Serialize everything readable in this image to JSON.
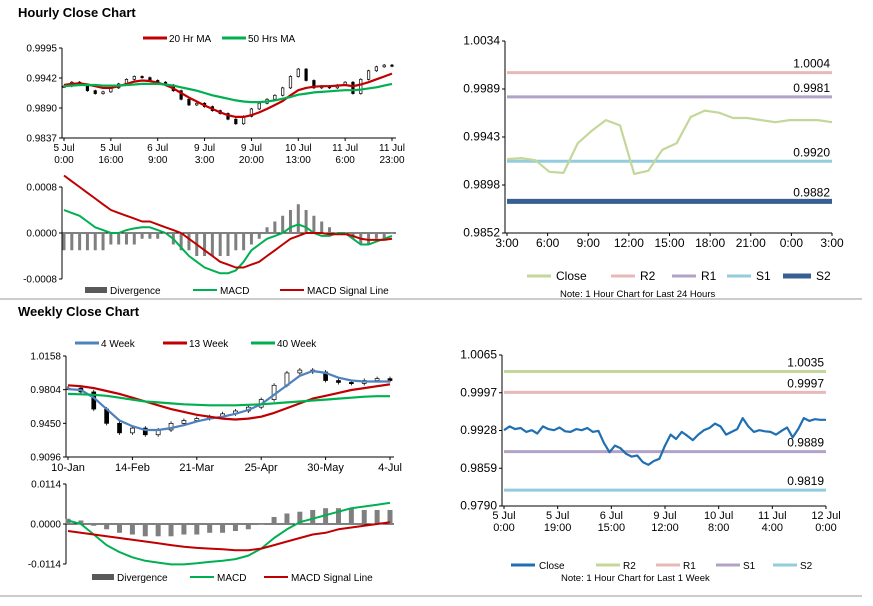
{
  "page": {
    "hourly_title": "Hourly Close Chart",
    "weekly_title": "Weekly Close Chart"
  },
  "legend_hourly_ma": [
    "20 Hr MA",
    "50 Hrs MA"
  ],
  "legend_hourly_macd": [
    "Divergence",
    "MACD",
    "MACD Signal Line"
  ],
  "legend_weekly_ma": [
    "4 Week",
    "13 Week",
    "40 Week"
  ],
  "legend_weekly_macd": [
    "Divergence",
    "MACD",
    "MACD Signal Line"
  ],
  "legend_pivot": [
    "Close",
    "R2",
    "R1",
    "S1",
    "S2"
  ],
  "notes": {
    "hourly": "Note: 1 Hour Chart for Last 24 Hours",
    "weekly": "Note: 1 Hour Chart for Last 1 Week"
  },
  "colors": {
    "ma20": "#c00000",
    "ma50": "#00b050",
    "wk4": "#4f81bd",
    "wk13": "#c00000",
    "wk40": "#00b050",
    "divergence": "#808080",
    "macd": "#00b050",
    "signal": "#c00000",
    "close_hourly": "#c4d79b",
    "close_weekly": "#1f6fb2",
    "r2_hourly": "#e6b9b8",
    "r1_hourly": "#b3a2c7",
    "s1_hourly": "#93cddd",
    "s2_hourly": "#376092",
    "r2_weekly": "#c4d79b",
    "r1_weekly": "#e6b9b8",
    "s1_weekly": "#b3a2c7",
    "s2_weekly": "#93cddd"
  },
  "chart_data": [
    {
      "id": "hourly_price",
      "type": "line",
      "title": "Hourly Close Chart",
      "x_tick_labels": [
        [
          "5 Jul",
          "0:00"
        ],
        [
          "5 Jul",
          "16:00"
        ],
        [
          "6 Jul",
          "9:00"
        ],
        [
          "9 Jul",
          "3:00"
        ],
        [
          "9 Jul",
          "20:00"
        ],
        [
          "10 Jul",
          "13:00"
        ],
        [
          "11 Jul",
          "6:00"
        ],
        [
          "11 Jul",
          "23:00"
        ]
      ],
      "y_tick_labels": [
        "0.9995",
        "0.9942",
        "0.9890",
        "0.9837"
      ],
      "ylim": [
        0.9837,
        0.9995
      ],
      "close": [
        0.9928,
        0.9935,
        0.993,
        0.992,
        0.9915,
        0.9918,
        0.9925,
        0.9932,
        0.994,
        0.9945,
        0.9943,
        0.9938,
        0.9935,
        0.993,
        0.992,
        0.9905,
        0.9895,
        0.9898,
        0.9892,
        0.9885,
        0.988,
        0.987,
        0.9862,
        0.9875,
        0.9888,
        0.9898,
        0.9905,
        0.9912,
        0.9925,
        0.9945,
        0.9958,
        0.9938,
        0.9925,
        0.9928,
        0.9925,
        0.993,
        0.9935,
        0.9915,
        0.994,
        0.9955,
        0.9962,
        0.9965,
        0.9963
      ],
      "series": [
        {
          "name": "20 Hr MA",
          "values": [
            0.993,
            0.9932,
            0.9933,
            0.9931,
            0.9928,
            0.9925,
            0.9925,
            0.9928,
            0.9932,
            0.9936,
            0.9938,
            0.9937,
            0.9934,
            0.993,
            0.9924,
            0.9916,
            0.9908,
            0.9901,
            0.9894,
            0.9888,
            0.9882,
            0.9877,
            0.9874,
            0.9874,
            0.9877,
            0.9882,
            0.9888,
            0.9895,
            0.9902,
            0.9912,
            0.9921,
            0.9925,
            0.9927,
            0.9928,
            0.9928,
            0.9929,
            0.993,
            0.9928,
            0.9931,
            0.9935,
            0.994,
            0.9945,
            0.995
          ]
        },
        {
          "name": "50 Hrs MA",
          "values": [
            0.9928,
            0.9929,
            0.993,
            0.993,
            0.993,
            0.9929,
            0.9929,
            0.9929,
            0.993,
            0.9931,
            0.9932,
            0.9932,
            0.9932,
            0.9931,
            0.9929,
            0.9926,
            0.9923,
            0.992,
            0.9916,
            0.9912,
            0.9909,
            0.9906,
            0.9903,
            0.9901,
            0.99,
            0.99,
            0.9901,
            0.9903,
            0.9906,
            0.9909,
            0.9913,
            0.9915,
            0.9917,
            0.9918,
            0.9919,
            0.992,
            0.9921,
            0.9921,
            0.9922,
            0.9924,
            0.9926,
            0.9929,
            0.9932
          ]
        }
      ]
    },
    {
      "id": "hourly_macd",
      "type": "bar+line",
      "y_tick_labels": [
        "0.0008",
        "0.0000",
        "-0.0008"
      ],
      "ylim": [
        -0.0008,
        0.0008
      ],
      "series": [
        {
          "name": "Divergence",
          "values": [
            -0.0003,
            -0.0003,
            -0.0003,
            -0.0003,
            -0.0003,
            -0.0003,
            -0.0002,
            -0.0002,
            -0.0002,
            -0.0002,
            -0.0001,
            -0.0001,
            -0.0001,
            0.0,
            -0.0002,
            -0.0003,
            -0.0003,
            -0.0004,
            -0.0004,
            -0.0004,
            -0.0004,
            -0.0004,
            -0.0003,
            -0.0003,
            -0.0002,
            -0.0001,
            0.0001,
            0.0002,
            0.0003,
            0.0004,
            0.0005,
            0.0004,
            0.0003,
            0.0002,
            0.0001,
            0.0,
            0.0,
            -0.0001,
            -0.0002,
            -0.0002,
            -0.0001,
            -0.0001,
            0.0
          ]
        },
        {
          "name": "MACD",
          "values": [
            0.0004,
            0.00035,
            0.0003,
            0.0002,
            0.0001,
            5e-05,
            0.0,
            0.0,
            5e-05,
            8e-05,
            0.0001,
            0.0001,
            5e-05,
            0.0,
            -0.0001,
            -0.00025,
            -0.0004,
            -0.0005,
            -0.0006,
            -0.00065,
            -0.0007,
            -0.0007,
            -0.00065,
            -0.0005,
            -0.0003,
            -0.0002,
            -0.0001,
            -5e-05,
            0.0,
            0.0001,
            0.00015,
            0.0001,
            0.0,
            -5e-05,
            -5e-05,
            0.0,
            0.0,
            -0.0001,
            -0.0002,
            -0.0002,
            -0.00015,
            -0.0001,
            -5e-05
          ]
        },
        {
          "name": "MACD Signal Line",
          "values": [
            0.001,
            0.0009,
            0.0008,
            0.0007,
            0.0006,
            0.0005,
            0.0004,
            0.00035,
            0.0003,
            0.00025,
            0.0002,
            0.0002,
            0.00015,
            0.0001,
            5e-05,
            0.0,
            -0.0001,
            -0.0002,
            -0.0003,
            -0.0004,
            -0.0005,
            -0.00055,
            -0.0006,
            -0.0006,
            -0.00055,
            -0.0005,
            -0.0004,
            -0.0003,
            -0.0002,
            -0.0001,
            -5e-05,
            0.0,
            0.0,
            0.0,
            -2e-05,
            -2e-05,
            -2e-05,
            -5e-05,
            -0.0001,
            -0.00012,
            -0.00012,
            -0.00012,
            -0.0001
          ]
        }
      ]
    },
    {
      "id": "hourly_pivot",
      "type": "line",
      "x_tick_labels": [
        "3:00",
        "6:00",
        "9:00",
        "12:00",
        "15:00",
        "18:00",
        "21:00",
        "0:00",
        "3:00"
      ],
      "y_tick_labels": [
        "1.0034",
        "0.9989",
        "0.9943",
        "0.9898",
        "0.9852"
      ],
      "ylim": [
        0.9852,
        1.0034
      ],
      "close": [
        0.9922,
        0.9923,
        0.9921,
        0.991,
        0.9909,
        0.9937,
        0.9949,
        0.9959,
        0.9954,
        0.9908,
        0.9911,
        0.9931,
        0.9937,
        0.9962,
        0.9968,
        0.9966,
        0.9961,
        0.9961,
        0.9959,
        0.9957,
        0.9959,
        0.9959,
        0.9959,
        0.9957
      ],
      "levels": [
        {
          "name": "R2",
          "value": 1.0004,
          "label": "1.0004"
        },
        {
          "name": "R1",
          "value": 0.9981,
          "label": "0.9981"
        },
        {
          "name": "S1",
          "value": 0.992,
          "label": "0.9920"
        },
        {
          "name": "S2",
          "value": 0.9882,
          "label": "0.9882"
        }
      ],
      "note": "Note: 1 Hour Chart for Last 24 Hours"
    },
    {
      "id": "weekly_price",
      "type": "line",
      "title": "Weekly Close Chart",
      "x_tick_labels": [
        "10-Jan",
        "14-Feb",
        "21-Mar",
        "25-Apr",
        "30-May",
        "4-Jul"
      ],
      "y_tick_labels": [
        "1.0158",
        "0.9804",
        "0.9450",
        "0.9096"
      ],
      "ylim": [
        0.9096,
        1.0158
      ],
      "close": [
        0.982,
        0.978,
        0.96,
        0.945,
        0.935,
        0.94,
        0.933,
        0.938,
        0.945,
        0.948,
        0.95,
        0.952,
        0.955,
        0.958,
        0.962,
        0.97,
        0.985,
        0.998,
        1.001,
        0.999,
        0.99,
        0.988,
        0.987,
        0.99,
        0.992,
        0.99
      ],
      "series": [
        {
          "name": "4 Week",
          "values": [
            0.981,
            0.98,
            0.972,
            0.96,
            0.948,
            0.942,
            0.938,
            0.938,
            0.94,
            0.943,
            0.947,
            0.95,
            0.952,
            0.955,
            0.959,
            0.965,
            0.975,
            0.985,
            0.995,
            1.0,
            0.998,
            0.993,
            0.99,
            0.989,
            0.989,
            0.989
          ]
        },
        {
          "name": "13 Week",
          "values": [
            0.985,
            0.984,
            0.982,
            0.979,
            0.976,
            0.972,
            0.968,
            0.964,
            0.96,
            0.957,
            0.954,
            0.952,
            0.95,
            0.949,
            0.95,
            0.952,
            0.956,
            0.961,
            0.966,
            0.971,
            0.974,
            0.977,
            0.98,
            0.982,
            0.984,
            0.986
          ]
        },
        {
          "name": "40 Week",
          "values": [
            0.976,
            0.9755,
            0.975,
            0.974,
            0.972,
            0.97,
            0.968,
            0.967,
            0.966,
            0.965,
            0.9645,
            0.964,
            0.964,
            0.964,
            0.9645,
            0.965,
            0.966,
            0.967,
            0.968,
            0.969,
            0.97,
            0.971,
            0.972,
            0.973,
            0.9735,
            0.9735
          ]
        }
      ]
    },
    {
      "id": "weekly_macd",
      "type": "bar+line",
      "y_tick_labels": [
        "0.0114",
        "0.0000",
        "-0.0114"
      ],
      "ylim": [
        -0.0114,
        0.0114
      ],
      "series": [
        {
          "name": "Divergence",
          "values": [
            0.0015,
            0.001,
            -0.0005,
            -0.0015,
            -0.0025,
            -0.003,
            -0.0035,
            -0.0035,
            -0.0035,
            -0.003,
            -0.003,
            -0.0025,
            -0.0025,
            -0.002,
            -0.0015,
            0.0,
            0.002,
            0.003,
            0.0035,
            0.004,
            0.0045,
            0.0045,
            0.0045,
            0.004,
            0.004,
            0.004
          ]
        },
        {
          "name": "MACD",
          "values": [
            0.001,
            0.0,
            -0.003,
            -0.006,
            -0.008,
            -0.0095,
            -0.0105,
            -0.011,
            -0.0115,
            -0.0115,
            -0.0112,
            -0.0108,
            -0.0105,
            -0.01,
            -0.009,
            -0.007,
            -0.004,
            -0.0015,
            0.0005,
            0.0015,
            0.0025,
            0.0035,
            0.0045,
            0.005,
            0.0055,
            0.006
          ]
        },
        {
          "name": "MACD Signal Line",
          "values": [
            -0.002,
            -0.0025,
            -0.003,
            -0.0035,
            -0.004,
            -0.0045,
            -0.005,
            -0.0055,
            -0.006,
            -0.0065,
            -0.0068,
            -0.007,
            -0.0072,
            -0.0075,
            -0.0075,
            -0.007,
            -0.006,
            -0.005,
            -0.004,
            -0.003,
            -0.0025,
            -0.0015,
            -0.001,
            -0.0005,
            0.0,
            0.0005
          ]
        }
      ]
    },
    {
      "id": "weekly_pivot",
      "type": "line",
      "x_tick_labels": [
        [
          "5 Jul",
          "0:00"
        ],
        [
          "5 Jul",
          "19:00"
        ],
        [
          "6 Jul",
          "15:00"
        ],
        [
          "9 Jul",
          "12:00"
        ],
        [
          "10 Jul",
          "8:00"
        ],
        [
          "11 Jul",
          "4:00"
        ],
        [
          "12 Jul",
          "0:00"
        ]
      ],
      "y_tick_labels": [
        "1.0065",
        "0.9997",
        "0.9928",
        "0.9859",
        "0.9790"
      ],
      "ylim": [
        0.979,
        1.0065
      ],
      "close": [
        0.9928,
        0.9935,
        0.993,
        0.9932,
        0.9925,
        0.9928,
        0.9922,
        0.9935,
        0.993,
        0.9928,
        0.9933,
        0.9926,
        0.9925,
        0.993,
        0.9928,
        0.9932,
        0.9925,
        0.9927,
        0.9905,
        0.9888,
        0.99,
        0.9895,
        0.9885,
        0.988,
        0.9882,
        0.987,
        0.9865,
        0.9872,
        0.9876,
        0.99,
        0.992,
        0.9912,
        0.9925,
        0.9918,
        0.991,
        0.992,
        0.9928,
        0.9932,
        0.994,
        0.9935,
        0.992,
        0.9925,
        0.993,
        0.995,
        0.9935,
        0.9925,
        0.9928,
        0.9926,
        0.9925,
        0.992,
        0.9927,
        0.9933,
        0.9915,
        0.993,
        0.995,
        0.9945,
        0.9948,
        0.9947,
        0.9947
      ],
      "levels": [
        {
          "name": "R2",
          "value": 1.0035,
          "label": "1.0035"
        },
        {
          "name": "R1",
          "value": 0.9997,
          "label": "0.9997"
        },
        {
          "name": "S1",
          "value": 0.9889,
          "label": "0.9889"
        },
        {
          "name": "S2",
          "value": 0.9819,
          "label": "0.9819"
        }
      ],
      "note": "Note: 1 Hour Chart for Last 1 Week"
    }
  ]
}
